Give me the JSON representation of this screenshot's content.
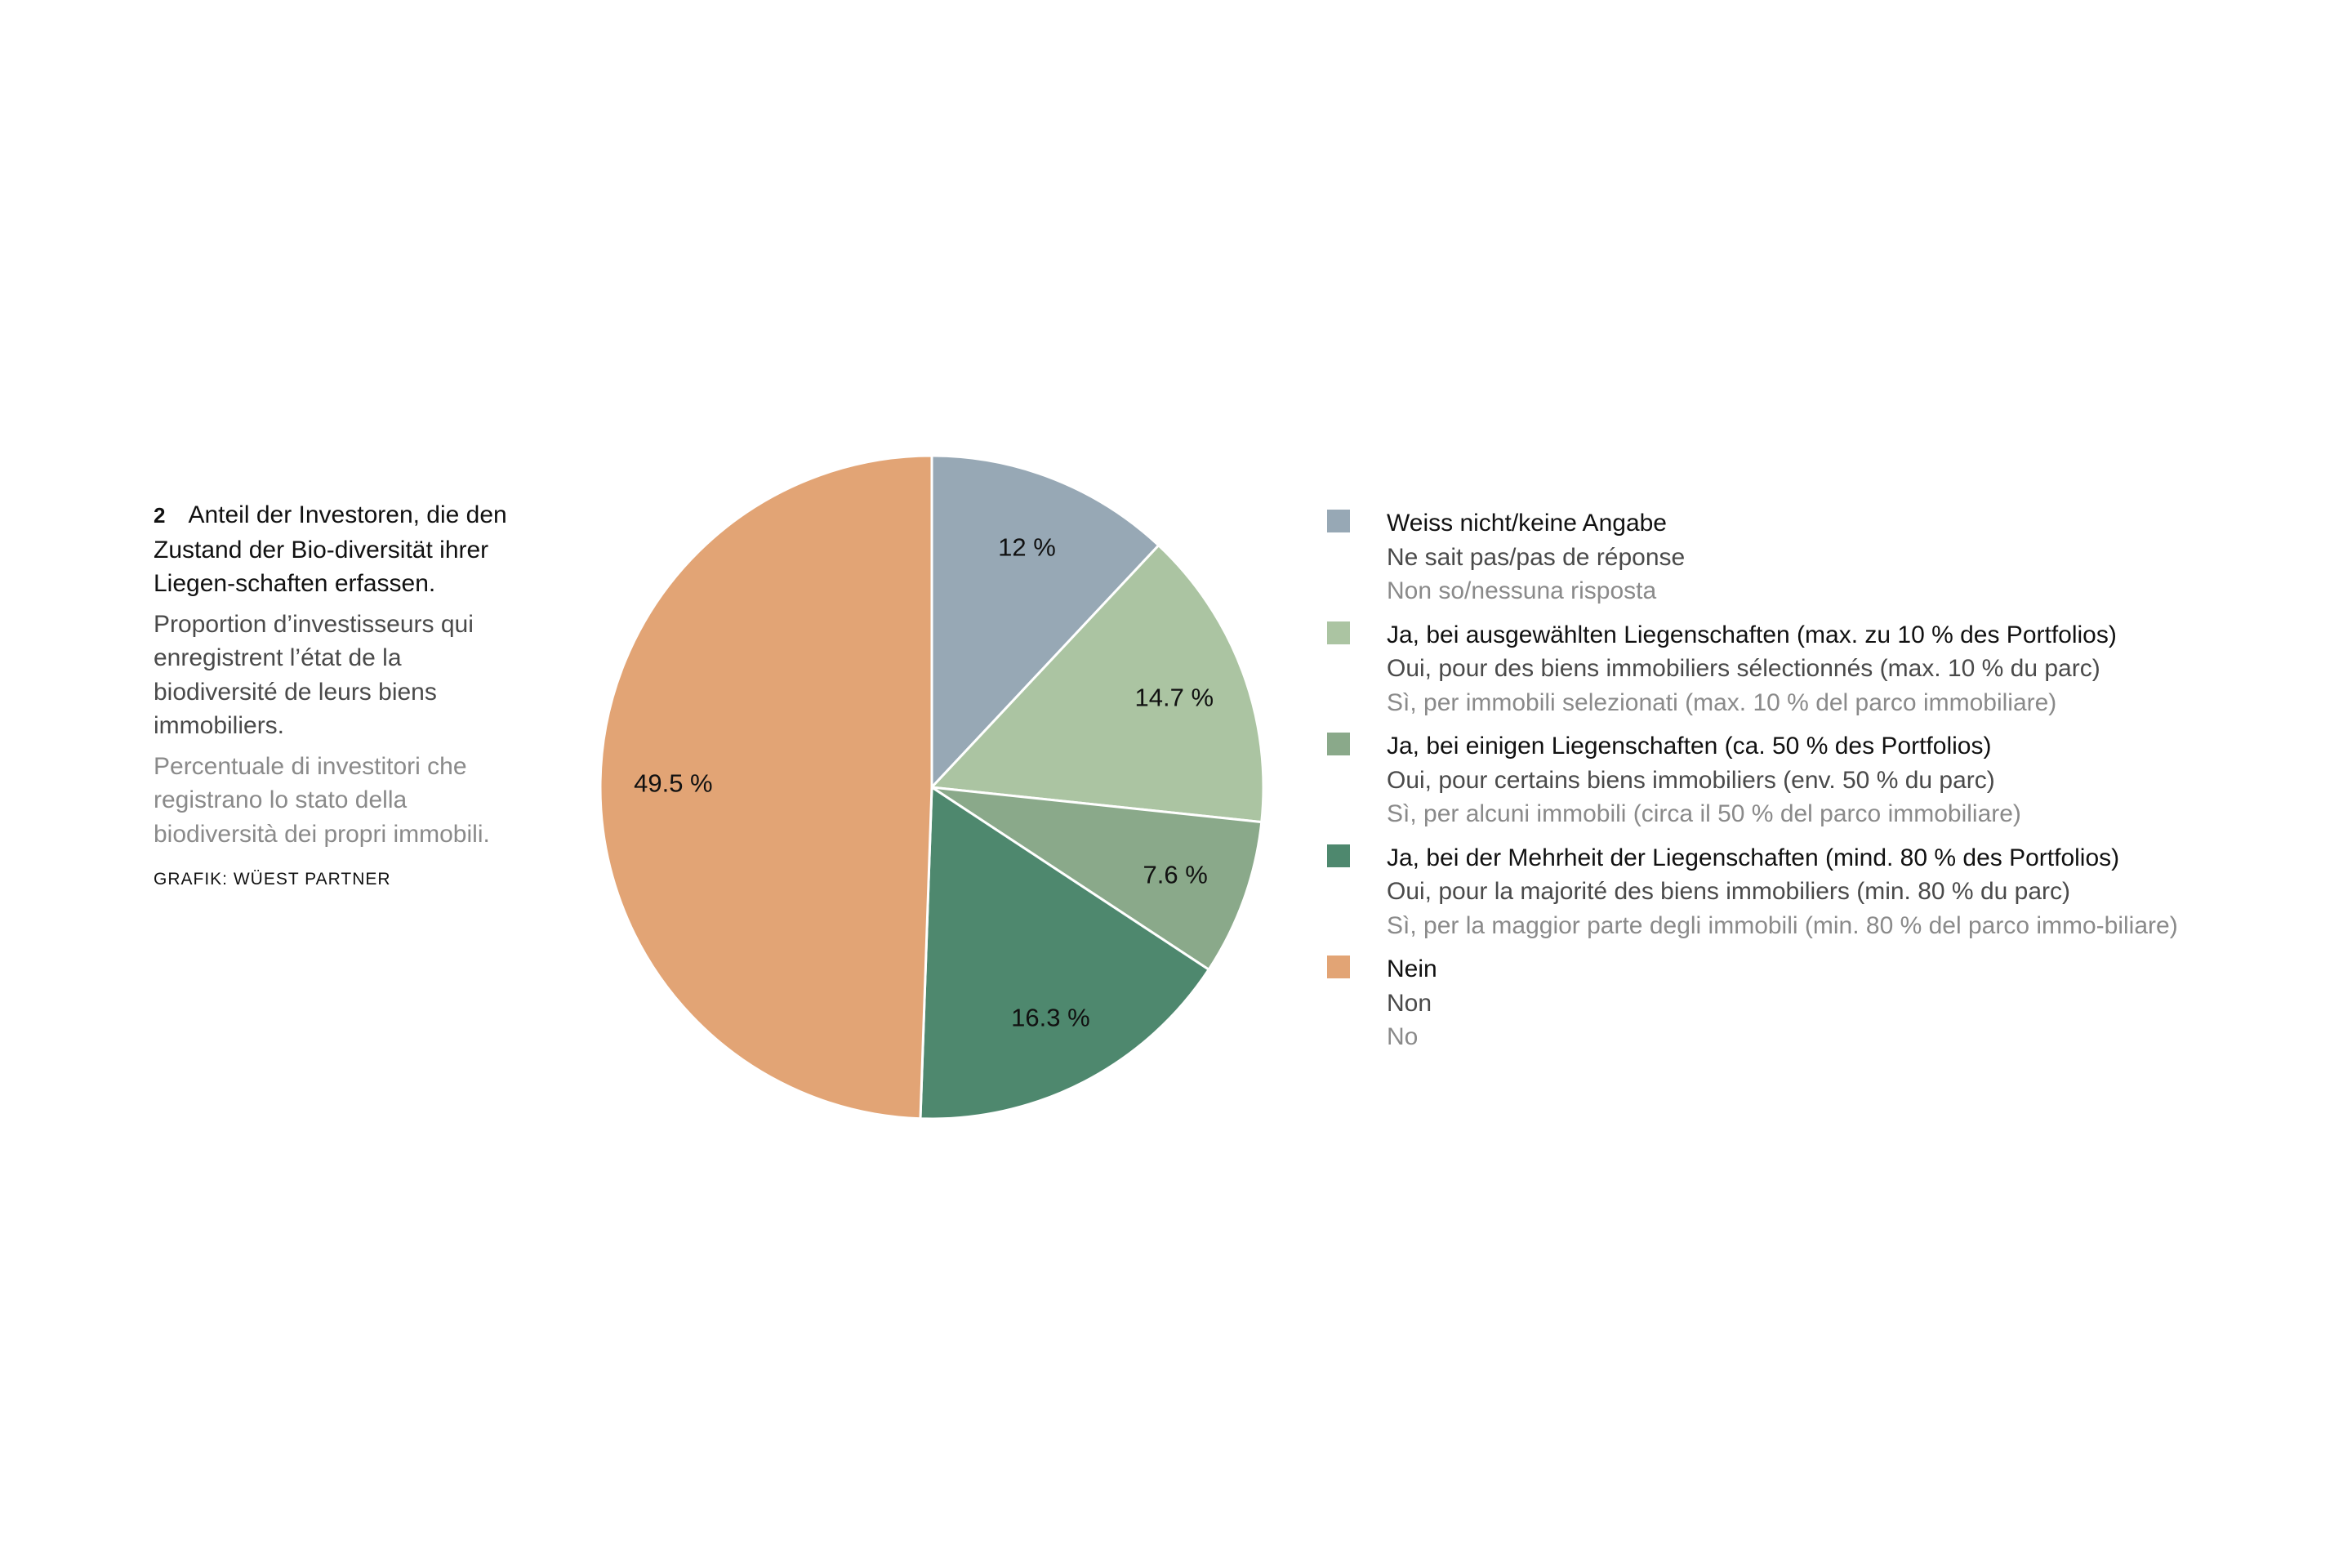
{
  "caption": {
    "number": "2",
    "title_de": "Anteil der Investoren, die den Zustand der Bio-diversität ihrer Liegen-schaften erfassen.",
    "title_fr": "Proportion d’investisseurs qui enregistrent l’état de la biodiversité de leurs biens immobiliers.",
    "title_it": "Percentuale di investitori che registrano lo stato della biodiversità dei propri immobili.",
    "source": "GRAFIK: WÜEST PARTNER"
  },
  "chart_data": {
    "type": "pie",
    "start": "top",
    "direction": "clockwise",
    "slices": [
      {
        "value": 12,
        "label": "12 %",
        "color": "#97a8b5",
        "de": "Weiss nicht/keine Angabe",
        "fr": "Ne sait pas/pas de réponse",
        "it": "Non so/nessuna risposta"
      },
      {
        "value": 14.7,
        "label": "14.7 %",
        "color": "#abc4a2",
        "de": "Ja, bei ausgewählten Liegenschaften (max. zu 10 % des Portfolios)",
        "fr": "Oui, pour des biens immobiliers sélectionnés (max. 10 % du parc)",
        "it": "Sì, per immobili selezionati (max. 10 % del parco immobiliare)"
      },
      {
        "value": 7.6,
        "label": "7.6 %",
        "color": "#8aa98a",
        "de": "Ja, bei einigen Liegenschaften (ca. 50 % des Portfolios)",
        "fr": "Oui, pour certains biens immobiliers (env. 50 % du parc)",
        "it": "Sì, per alcuni immobili (circa il 50 % del parco immobiliare)"
      },
      {
        "value": 16.3,
        "label": "16.3 %",
        "color": "#4e886e",
        "de": "Ja, bei der Mehrheit der Liegenschaften (mind. 80 % des Portfolios)",
        "fr": "Oui, pour la majorité des biens immobiliers (min. 80 % du parc)",
        "it": "Sì, per la maggior parte degli immobili (min. 80 % del parco immo-biliare)"
      },
      {
        "value": 49.5,
        "label": "49.5 %",
        "color": "#e2a475",
        "de": "Nein",
        "fr": "Non",
        "it": "No"
      }
    ],
    "legend_position": "right"
  }
}
